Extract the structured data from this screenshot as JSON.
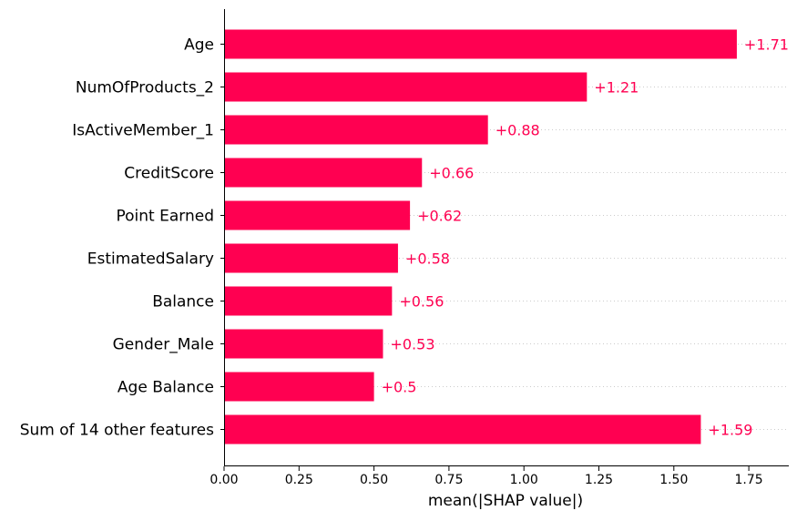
{
  "chart_data": {
    "type": "bar",
    "orientation": "horizontal",
    "categories": [
      "Age",
      "NumOfProducts_2",
      "IsActiveMember_1",
      "CreditScore",
      "Point Earned",
      "EstimatedSalary",
      "Balance",
      "Gender_Male",
      "Age Balance",
      "Sum of 14 other features"
    ],
    "values": [
      1.71,
      1.21,
      0.88,
      0.66,
      0.62,
      0.58,
      0.56,
      0.53,
      0.5,
      1.59
    ],
    "value_labels": [
      "+1.71",
      "+1.21",
      "+0.88",
      "+0.66",
      "+0.62",
      "+0.58",
      "+0.56",
      "+0.53",
      "+0.5",
      "+1.59"
    ],
    "xlabel": "mean(|SHAP value|)",
    "ylabel": "",
    "xlim": [
      0,
      1.88
    ],
    "xticks": [
      0.0,
      0.25,
      0.5,
      0.75,
      1.0,
      1.25,
      1.5,
      1.75
    ],
    "xtick_labels": [
      "0.00",
      "0.25",
      "0.50",
      "0.75",
      "1.00",
      "1.25",
      "1.50",
      "1.75"
    ],
    "grid": "dotted horizontal row guides",
    "legend": "none",
    "colors": {
      "bar": "#ff0051",
      "value_text": "#ff0051",
      "axis": "#000000",
      "grid": "#cccccc"
    }
  }
}
